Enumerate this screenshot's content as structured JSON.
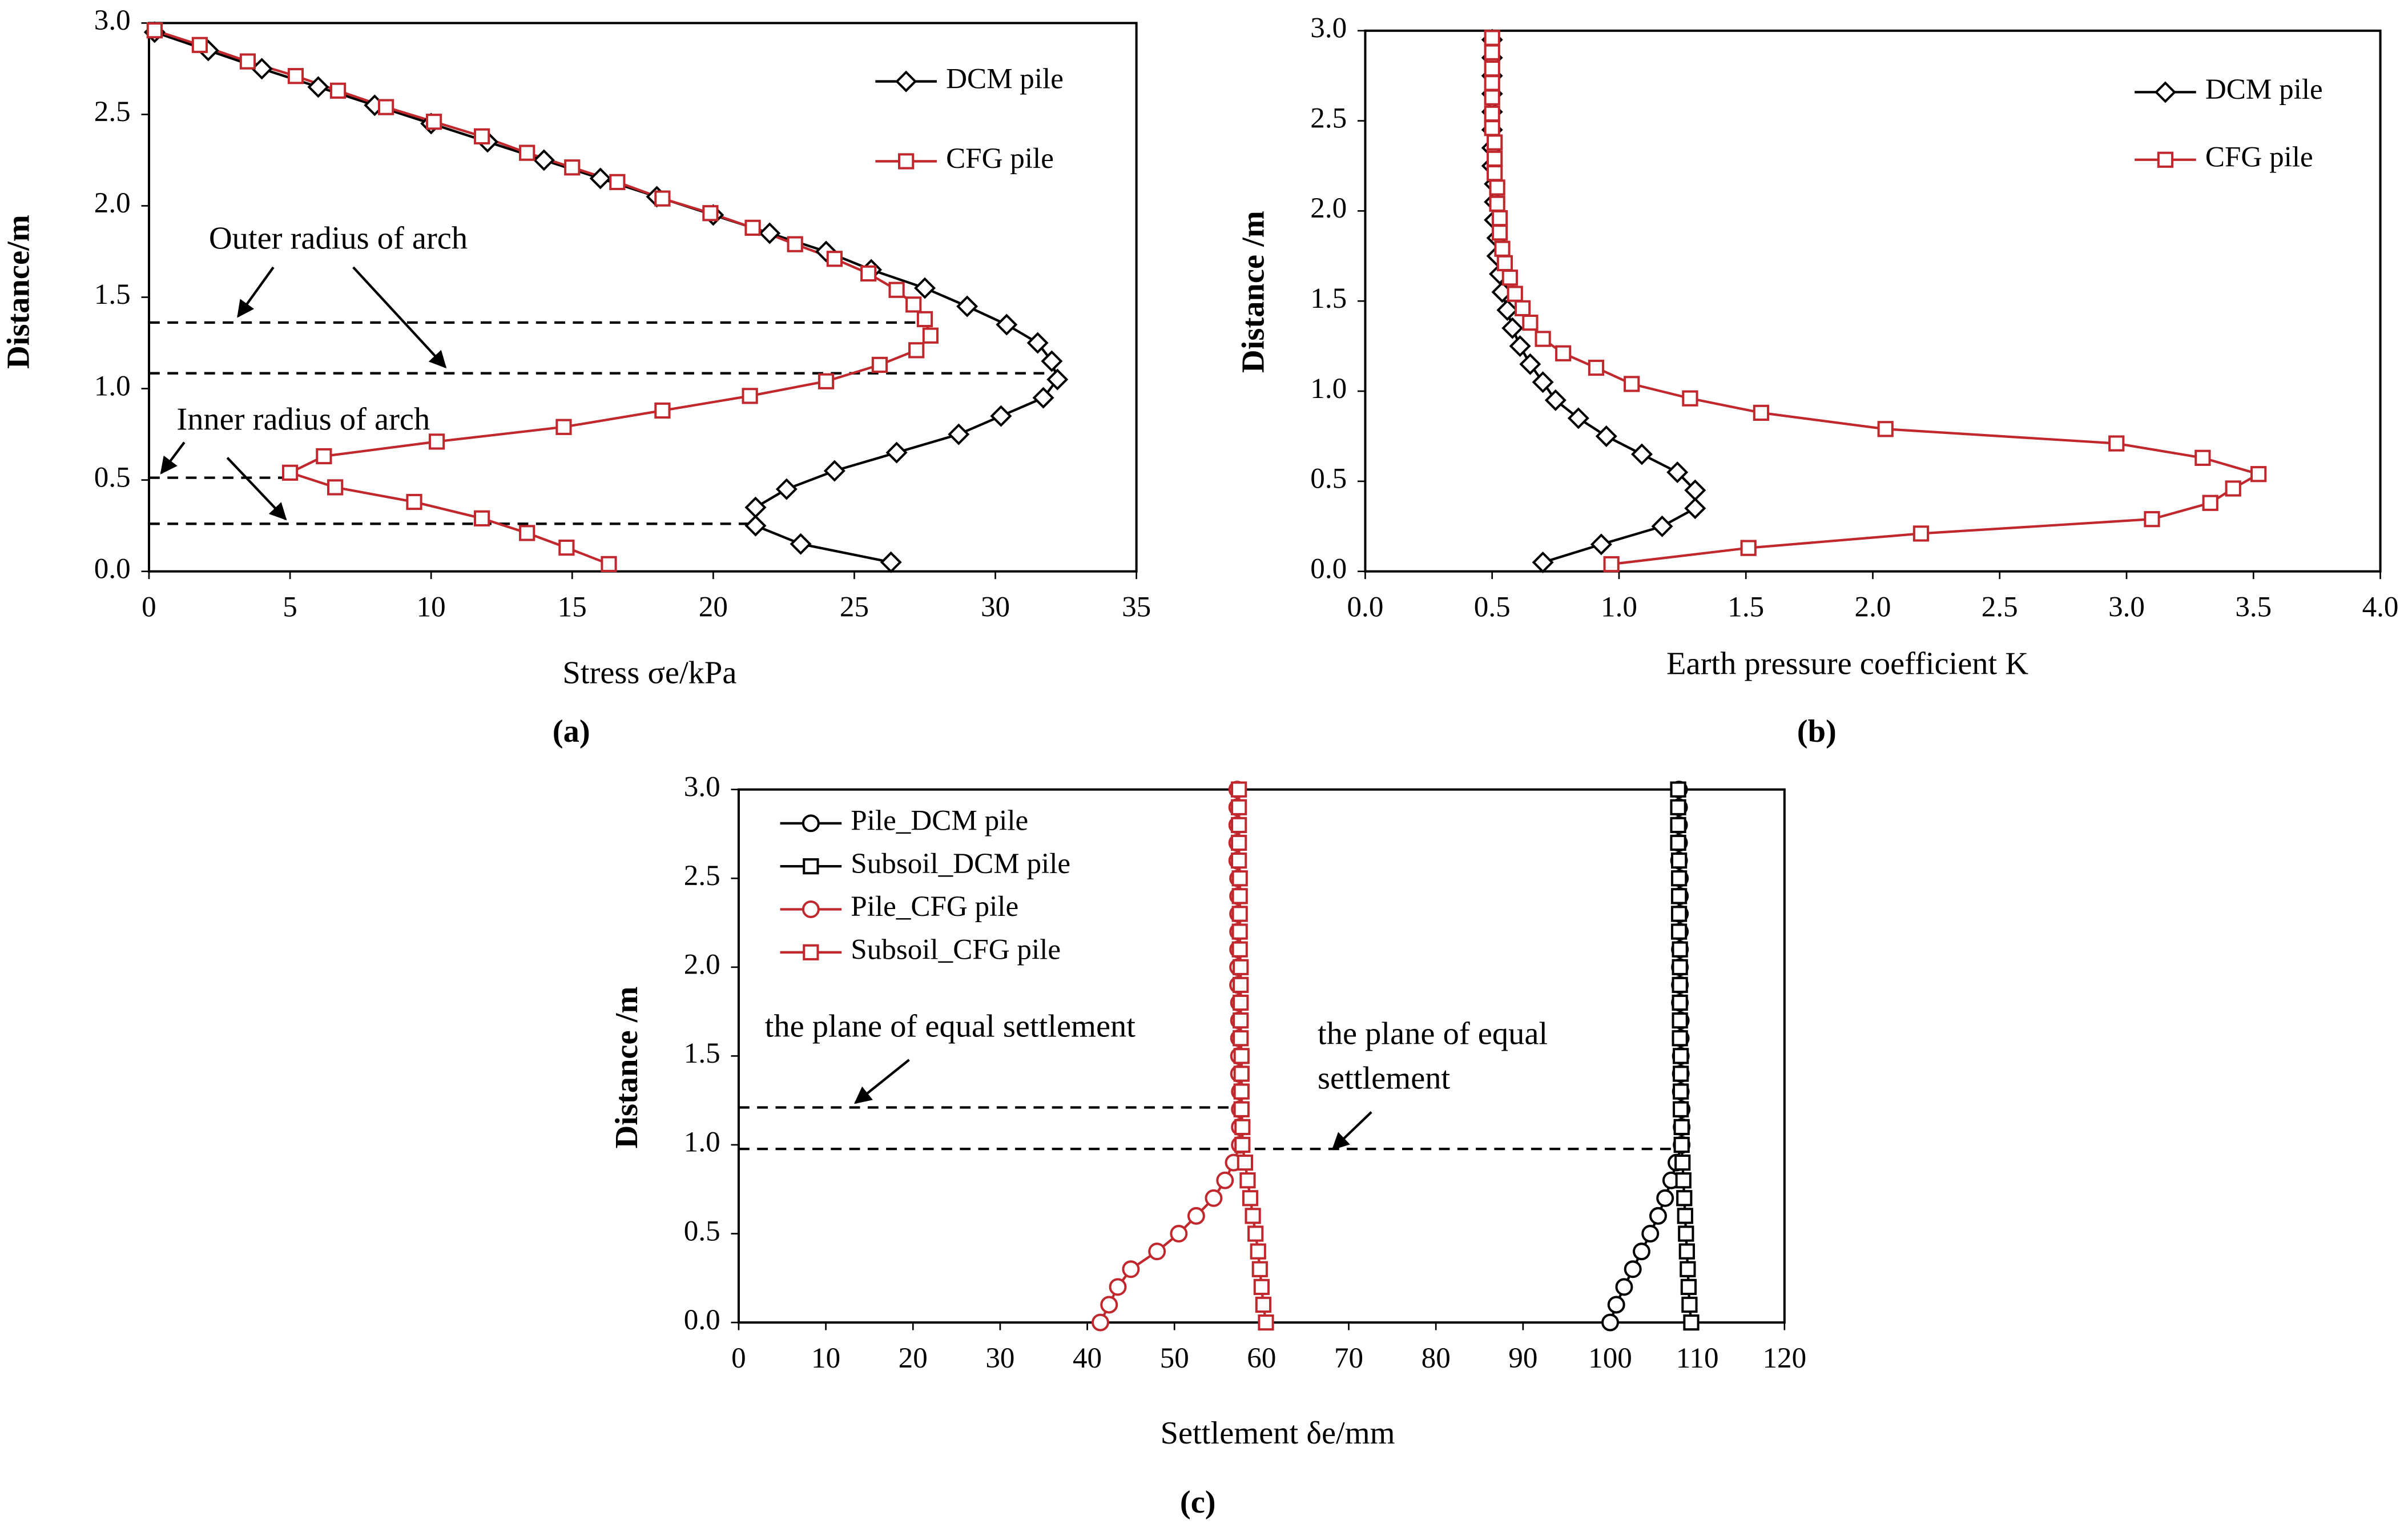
{
  "chart_data": [
    {
      "type": "line",
      "panel": "(a)",
      "x_label": "Stress σe/kPa",
      "y_label": "Distance/m",
      "xlim": [
        0,
        35
      ],
      "xticks": [
        0,
        5,
        10,
        15,
        20,
        25,
        30,
        35
      ],
      "ylim": [
        0,
        3
      ],
      "yticks": [
        {
          "value": 0,
          "label": "0.0"
        },
        0.5,
        {
          "value": 1,
          "label": "1.0"
        },
        1.5,
        {
          "value": 2,
          "label": "2.0"
        },
        2.5,
        {
          "value": 3,
          "label": "3.0"
        }
      ],
      "legend": "upper right",
      "annotations": [
        [
          "Outer radius of arch"
        ],
        [
          "Inner radius of arch"
        ]
      ],
      "series": [
        {
          "name": "DCM pile",
          "color": "#000000",
          "marker": "diamond",
          "x": [
            0.2,
            2.1,
            4.0,
            6.0,
            8.0,
            10.0,
            12.0,
            14.0,
            16.0,
            18.0,
            20.0,
            22.0,
            24.0,
            25.6,
            27.5,
            29.0,
            30.4,
            31.5,
            32.0,
            32.2,
            31.7,
            30.2,
            28.7,
            26.5,
            24.3,
            22.6,
            21.5,
            21.5,
            23.1,
            26.3
          ],
          "y": [
            2.95,
            2.85,
            2.75,
            2.65,
            2.55,
            2.45,
            2.35,
            2.25,
            2.15,
            2.05,
            1.95,
            1.85,
            1.75,
            1.65,
            1.55,
            1.45,
            1.35,
            1.25,
            1.15,
            1.05,
            0.95,
            0.85,
            0.75,
            0.65,
            0.55,
            0.45,
            0.35,
            0.25,
            0.15,
            0.05
          ]
        },
        {
          "name": "CFG pile",
          "color": "#c0282d",
          "marker": "square",
          "x": [
            0.2,
            1.8,
            3.5,
            5.2,
            6.7,
            8.4,
            10.1,
            11.8,
            13.4,
            15.0,
            16.6,
            18.2,
            19.9,
            21.4,
            22.9,
            24.3,
            25.5,
            26.5,
            27.1,
            27.5,
            27.7,
            27.2,
            25.9,
            24.0,
            21.3,
            18.2,
            14.7,
            10.2,
            6.2,
            5.0,
            6.6,
            9.4,
            11.8,
            13.4,
            14.8,
            16.3
          ],
          "y": [
            2.96,
            2.88,
            2.79,
            2.71,
            2.63,
            2.54,
            2.46,
            2.38,
            2.29,
            2.21,
            2.13,
            2.04,
            1.96,
            1.88,
            1.79,
            1.71,
            1.63,
            1.54,
            1.46,
            1.38,
            1.29,
            1.21,
            1.13,
            1.04,
            0.96,
            0.88,
            0.79,
            0.71,
            0.63,
            0.54,
            0.46,
            0.38,
            0.29,
            0.21,
            0.13,
            0.04
          ]
        }
      ]
    },
    {
      "type": "line",
      "panel": "(b)",
      "x_label": "Earth pressure coefficient K",
      "y_label": "Distance /m",
      "xlim": [
        0,
        4
      ],
      "xticks": [
        {
          "value": 0,
          "label": "0.0"
        },
        0.5,
        {
          "value": 1,
          "label": "1.0"
        },
        1.5,
        {
          "value": 2,
          "label": "2.0"
        },
        2.5,
        {
          "value": 3,
          "label": "3.0"
        },
        3.5,
        {
          "value": 4,
          "label": "4.0"
        }
      ],
      "ylim": [
        0,
        3
      ],
      "yticks": [
        {
          "value": 0,
          "label": "0.0"
        },
        0.5,
        {
          "value": 1,
          "label": "1.0"
        },
        1.5,
        {
          "value": 2,
          "label": "2.0"
        },
        2.5,
        {
          "value": 3,
          "label": "3.0"
        }
      ],
      "legend": "upper right",
      "annotations": [],
      "series": [
        {
          "name": "DCM pile",
          "color": "#000000",
          "marker": "diamond",
          "x": [
            0.5,
            0.5,
            0.5,
            0.5,
            0.5,
            0.5,
            0.5,
            0.5,
            0.51,
            0.51,
            0.51,
            0.52,
            0.52,
            0.53,
            0.54,
            0.56,
            0.58,
            0.61,
            0.65,
            0.7,
            0.75,
            0.84,
            0.95,
            1.09,
            1.23,
            1.3,
            1.3,
            1.17,
            0.93,
            0.7
          ],
          "y": [
            2.95,
            2.85,
            2.75,
            2.65,
            2.55,
            2.45,
            2.35,
            2.25,
            2.15,
            2.05,
            1.95,
            1.85,
            1.75,
            1.65,
            1.55,
            1.45,
            1.35,
            1.25,
            1.15,
            1.05,
            0.95,
            0.85,
            0.75,
            0.65,
            0.55,
            0.45,
            0.35,
            0.25,
            0.15,
            0.05
          ]
        },
        {
          "name": "CFG pile",
          "color": "#c0282d",
          "marker": "square",
          "x": [
            0.5,
            0.5,
            0.5,
            0.5,
            0.5,
            0.5,
            0.5,
            0.51,
            0.51,
            0.51,
            0.52,
            0.52,
            0.53,
            0.53,
            0.54,
            0.55,
            0.57,
            0.59,
            0.62,
            0.65,
            0.7,
            0.78,
            0.91,
            1.05,
            1.28,
            1.56,
            2.05,
            2.96,
            3.3,
            3.52,
            3.42,
            3.33,
            3.1,
            2.19,
            1.51,
            0.97
          ],
          "y": [
            2.96,
            2.88,
            2.79,
            2.71,
            2.63,
            2.54,
            2.46,
            2.38,
            2.29,
            2.21,
            2.13,
            2.04,
            1.96,
            1.88,
            1.79,
            1.71,
            1.63,
            1.54,
            1.46,
            1.38,
            1.29,
            1.21,
            1.13,
            1.04,
            0.96,
            0.88,
            0.79,
            0.71,
            0.63,
            0.54,
            0.46,
            0.38,
            0.29,
            0.21,
            0.13,
            0.04
          ]
        }
      ]
    },
    {
      "type": "line",
      "panel": "(c)",
      "x_label": "Settlement δe/mm",
      "y_label": "Distance /m",
      "xlim": [
        0,
        120
      ],
      "xticks": [
        0,
        10,
        20,
        30,
        40,
        50,
        60,
        70,
        80,
        90,
        100,
        110,
        120
      ],
      "ylim": [
        0,
        3
      ],
      "yticks": [
        {
          "value": 0,
          "label": "0.0"
        },
        0.5,
        {
          "value": 1,
          "label": "1.0"
        },
        1.5,
        {
          "value": 2,
          "label": "2.0"
        },
        2.5,
        {
          "value": 3,
          "label": "3.0"
        }
      ],
      "legend": "upper left",
      "annotations": [
        [
          "the plane of equal settlement"
        ],
        [
          "the plane of equal",
          "settlement"
        ]
      ],
      "series": [
        {
          "name": "Pile_DCM pile",
          "color": "#000000",
          "marker": "circle",
          "x": [
            107.9,
            107.9,
            107.9,
            107.9,
            107.9,
            108.0,
            108.0,
            108.0,
            108.0,
            108.0,
            108.0,
            108.0,
            108.0,
            108.1,
            108.1,
            108.1,
            108.1,
            108.1,
            108.2,
            108.2,
            108.2,
            107.6,
            107.0,
            106.3,
            105.5,
            104.6,
            103.6,
            102.6,
            101.6,
            100.7,
            100.0
          ],
          "y": [
            3.0,
            2.9,
            2.8,
            2.7,
            2.6,
            2.5,
            2.4,
            2.3,
            2.2,
            2.1,
            2.0,
            1.9,
            1.8,
            1.7,
            1.6,
            1.5,
            1.4,
            1.3,
            1.2,
            1.1,
            1.0,
            0.9,
            0.8,
            0.7,
            0.6,
            0.5,
            0.4,
            0.3,
            0.2,
            0.1,
            0.0
          ]
        },
        {
          "name": "Subsoil_DCM pile",
          "color": "#000000",
          "marker": "square",
          "x": [
            107.8,
            107.8,
            107.8,
            107.8,
            107.9,
            107.9,
            107.9,
            107.9,
            107.9,
            108.0,
            108.0,
            108.0,
            108.0,
            108.0,
            108.0,
            108.1,
            108.1,
            108.1,
            108.1,
            108.2,
            108.2,
            108.3,
            108.4,
            108.5,
            108.6,
            108.7,
            108.8,
            108.9,
            109.0,
            109.1,
            109.3
          ],
          "y": [
            3.0,
            2.9,
            2.8,
            2.7,
            2.6,
            2.5,
            2.4,
            2.3,
            2.2,
            2.1,
            2.0,
            1.9,
            1.8,
            1.7,
            1.6,
            1.5,
            1.4,
            1.3,
            1.2,
            1.1,
            1.0,
            0.9,
            0.8,
            0.7,
            0.6,
            0.5,
            0.4,
            0.3,
            0.2,
            0.1,
            0.0
          ]
        },
        {
          "name": "Pile_CFG pile",
          "color": "#c0282d",
          "marker": "circle",
          "x": [
            57.2,
            57.2,
            57.2,
            57.2,
            57.2,
            57.3,
            57.3,
            57.3,
            57.3,
            57.3,
            57.3,
            57.3,
            57.4,
            57.4,
            57.4,
            57.4,
            57.4,
            57.5,
            57.5,
            57.5,
            57.5,
            56.8,
            55.8,
            54.5,
            52.5,
            50.5,
            48.0,
            45.0,
            43.5,
            42.5,
            41.5
          ],
          "y": [
            3.0,
            2.9,
            2.8,
            2.7,
            2.6,
            2.5,
            2.4,
            2.3,
            2.2,
            2.1,
            2.0,
            1.9,
            1.8,
            1.7,
            1.6,
            1.5,
            1.4,
            1.3,
            1.2,
            1.1,
            1.0,
            0.9,
            0.8,
            0.7,
            0.6,
            0.5,
            0.4,
            0.3,
            0.2,
            0.1,
            0.0
          ]
        },
        {
          "name": "Subsoil_CFG pile",
          "color": "#c0282d",
          "marker": "square",
          "x": [
            57.4,
            57.4,
            57.4,
            57.4,
            57.4,
            57.5,
            57.5,
            57.5,
            57.5,
            57.5,
            57.6,
            57.6,
            57.6,
            57.6,
            57.6,
            57.7,
            57.7,
            57.7,
            57.7,
            57.8,
            57.8,
            58.1,
            58.4,
            58.7,
            59.0,
            59.3,
            59.6,
            59.8,
            60.0,
            60.2,
            60.5
          ],
          "y": [
            3.0,
            2.9,
            2.8,
            2.7,
            2.6,
            2.5,
            2.4,
            2.3,
            2.2,
            2.1,
            2.0,
            1.9,
            1.8,
            1.7,
            1.6,
            1.5,
            1.4,
            1.3,
            1.2,
            1.1,
            1.0,
            0.9,
            0.8,
            0.7,
            0.6,
            0.5,
            0.4,
            0.3,
            0.2,
            0.1,
            0.0
          ]
        }
      ]
    }
  ]
}
